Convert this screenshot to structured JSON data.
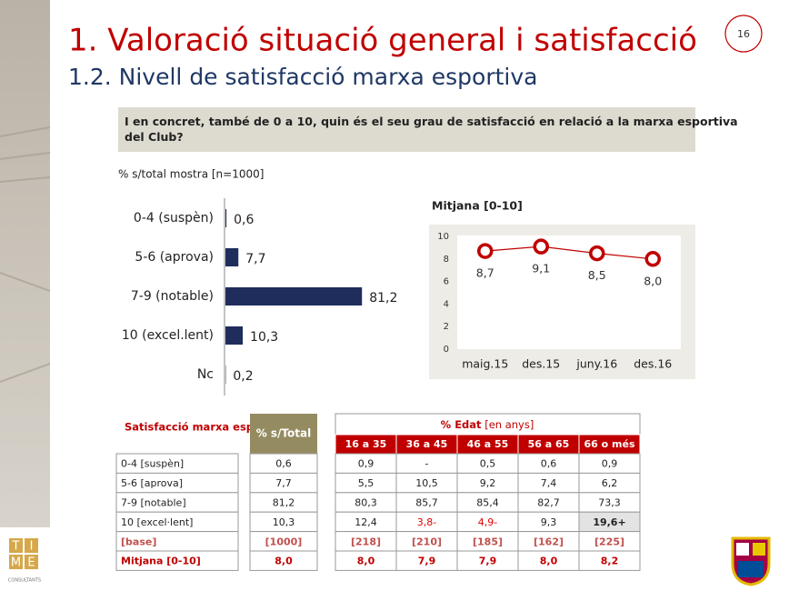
{
  "header": {
    "title": "1. Valoració situació general i satisfacció",
    "subtitle": "1.2. Nivell de satisfacció marxa esportiva",
    "page": "16"
  },
  "question": "I en concret, també de 0 a 10, quin és el seu grau de satisfacció en relació a la marxa esportiva del Club?",
  "chart_data": [
    {
      "type": "hbar",
      "subtitle": "% s/total mostra [n=1000]",
      "categories": [
        "0-4 (suspèn)",
        "5-6 (aprova)",
        "7-9 (notable)",
        "10 (excel.lent)",
        "Nc"
      ],
      "values": [
        0.6,
        7.7,
        81.2,
        10.3,
        0.2
      ],
      "value_labels": [
        "0,6",
        "7,7",
        "81,2",
        "10,3",
        "0,2"
      ],
      "color": "#1f2d5c"
    },
    {
      "type": "line",
      "title": "Mitjana [0-10]",
      "categories": [
        "maig.15",
        "des.15",
        "juny.16",
        "des.16"
      ],
      "values": [
        8.7,
        9.1,
        8.5,
        8.0
      ],
      "value_labels": [
        "8,7",
        "9,1",
        "8,5",
        "8,0"
      ],
      "ylim": [
        0,
        10
      ],
      "yticks": [
        0,
        2,
        4,
        6,
        8,
        10
      ],
      "grid": false,
      "color": "#c00000"
    }
  ],
  "table": {
    "title": "Satisfacció marxa esportiva",
    "total_header": "% s/Total",
    "group_header": "% Edat",
    "group_note": "[en anys]",
    "columns": [
      "16 a 35",
      "36 a 45",
      "46 a 55",
      "56 a 65",
      "66 o més"
    ],
    "rows": [
      [
        "0-4 [suspèn]",
        "0,6",
        "0,9",
        "-",
        "0,5",
        "0,6",
        "0,9"
      ],
      [
        "5-6 [aprova]",
        "7,7",
        "5,5",
        "10,5",
        "9,2",
        "7,4",
        "6,2"
      ],
      [
        "7-9 [notable]",
        "81,2",
        "80,3",
        "85,7",
        "85,4",
        "82,7",
        "73,3"
      ],
      [
        "10 [excel·lent]",
        "10,3",
        "12,4",
        "3,8-",
        "4,9-",
        "9,3",
        "19,6+"
      ],
      [
        "[base]",
        "[1000]",
        "[218]",
        "[210]",
        "[185]",
        "[162]",
        "[225]"
      ],
      [
        "Mitjana [0-10]",
        "8,0",
        "8,0",
        "7,9",
        "7,9",
        "8,0",
        "8,2"
      ]
    ]
  },
  "logo": {
    "letters": [
      "T",
      "I",
      "M",
      "E"
    ],
    "caption": "CONSULTANTS"
  }
}
